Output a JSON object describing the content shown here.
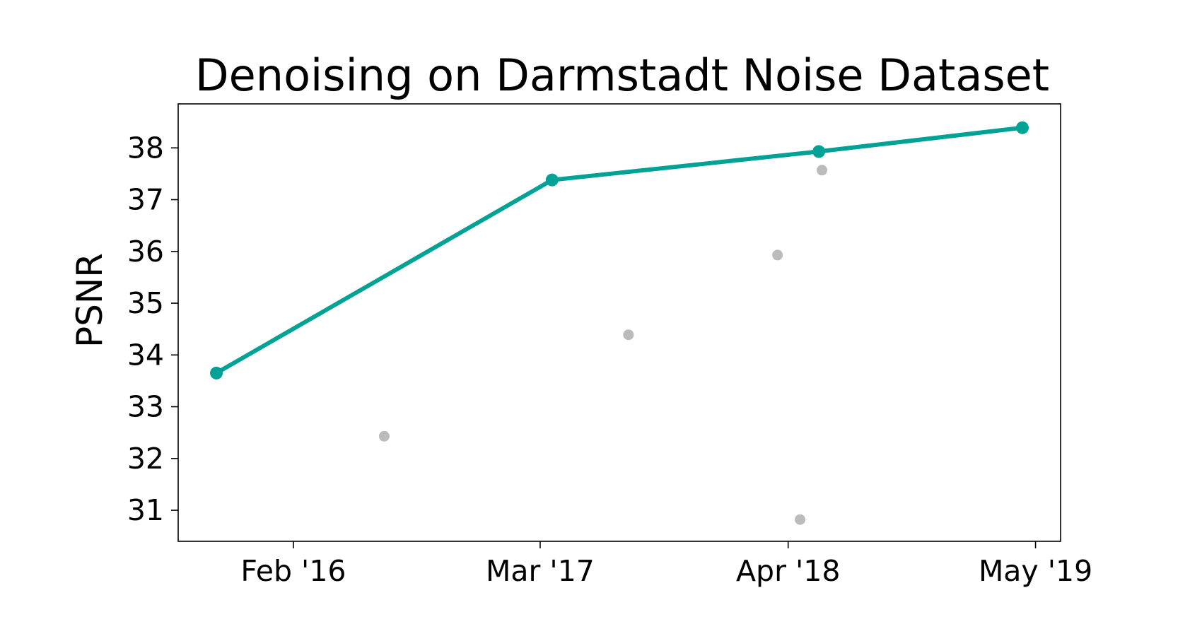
{
  "chart_data": {
    "type": "scatter",
    "title": "Denoising on Darmstadt Noise Dataset",
    "ylabel": "PSNR",
    "xlabel": "",
    "xlim": [
      "2015-08-01",
      "2019-06-10"
    ],
    "ylim": [
      30.4,
      38.85
    ],
    "x_ticks": [
      {
        "date": "2016-02-01",
        "label": "Feb '16"
      },
      {
        "date": "2017-03-01",
        "label": "Mar '17"
      },
      {
        "date": "2018-04-01",
        "label": "Apr '18"
      },
      {
        "date": "2019-05-01",
        "label": "May '19"
      }
    ],
    "y_ticks": [
      31,
      32,
      33,
      34,
      35,
      36,
      37,
      38
    ],
    "grid": false,
    "legend": "none",
    "series": [
      {
        "role": "state-of-the-art",
        "color": "#00a295",
        "style": "line-with-markers",
        "points": [
          {
            "date": "2015-10-01",
            "y": 33.65
          },
          {
            "date": "2017-03-20",
            "y": 37.38
          },
          {
            "date": "2018-05-20",
            "y": 37.93
          },
          {
            "date": "2019-04-10",
            "y": 38.39
          }
        ]
      },
      {
        "role": "other-methods",
        "color": "#bbbbbb",
        "style": "markers",
        "points": [
          {
            "date": "2016-06-25",
            "y": 32.43
          },
          {
            "date": "2017-07-20",
            "y": 34.39
          },
          {
            "date": "2018-03-15",
            "y": 35.93
          },
          {
            "date": "2018-04-20",
            "y": 30.82
          },
          {
            "date": "2018-05-25",
            "y": 37.57
          }
        ]
      }
    ]
  }
}
